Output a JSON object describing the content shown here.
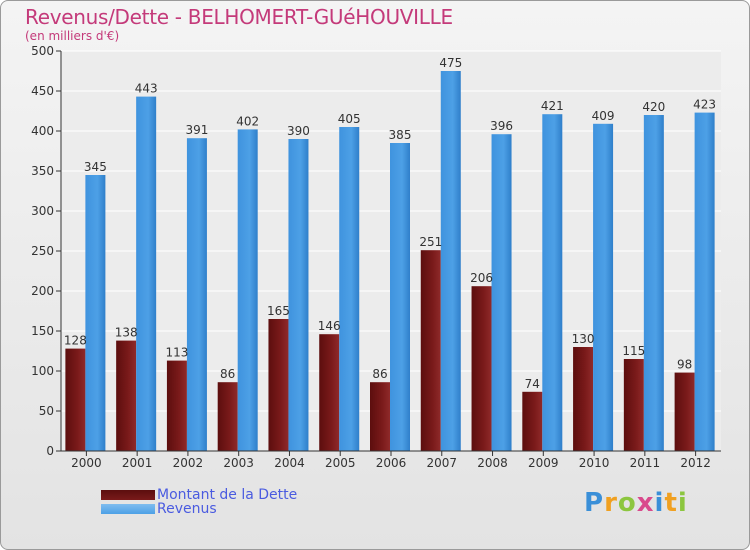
{
  "chart_data": {
    "type": "bar",
    "title": "Revenus/Dette - BELHOMERT-GUéHOUVILLE",
    "subtitle": "(en milliers d'€)",
    "categories": [
      "2000",
      "2001",
      "2002",
      "2003",
      "2004",
      "2005",
      "2006",
      "2007",
      "2008",
      "2009",
      "2010",
      "2011",
      "2012"
    ],
    "series": [
      {
        "name": "Montant de la Dette",
        "color": "#7a1a1a",
        "values": [
          128,
          138,
          113,
          86,
          165,
          146,
          86,
          251,
          206,
          74,
          130,
          115,
          98
        ]
      },
      {
        "name": "Revenus",
        "color": "#4da0e6",
        "values": [
          345,
          443,
          391,
          402,
          390,
          405,
          385,
          475,
          396,
          421,
          409,
          420,
          423
        ]
      }
    ],
    "ylim": [
      0,
      500
    ],
    "yticks": [
      0,
      50,
      100,
      150,
      200,
      250,
      300,
      350,
      400,
      450,
      500
    ],
    "grid": true,
    "legend_position": "bottom-left"
  },
  "logo": {
    "letters": [
      "P",
      "r",
      "o",
      "x",
      "i",
      "t",
      "i"
    ],
    "colors": [
      "#3a8fd8",
      "#f0a020",
      "#8cc63f",
      "#d94a8c",
      "#3a8fd8",
      "#f0a020",
      "#8cc63f"
    ]
  }
}
